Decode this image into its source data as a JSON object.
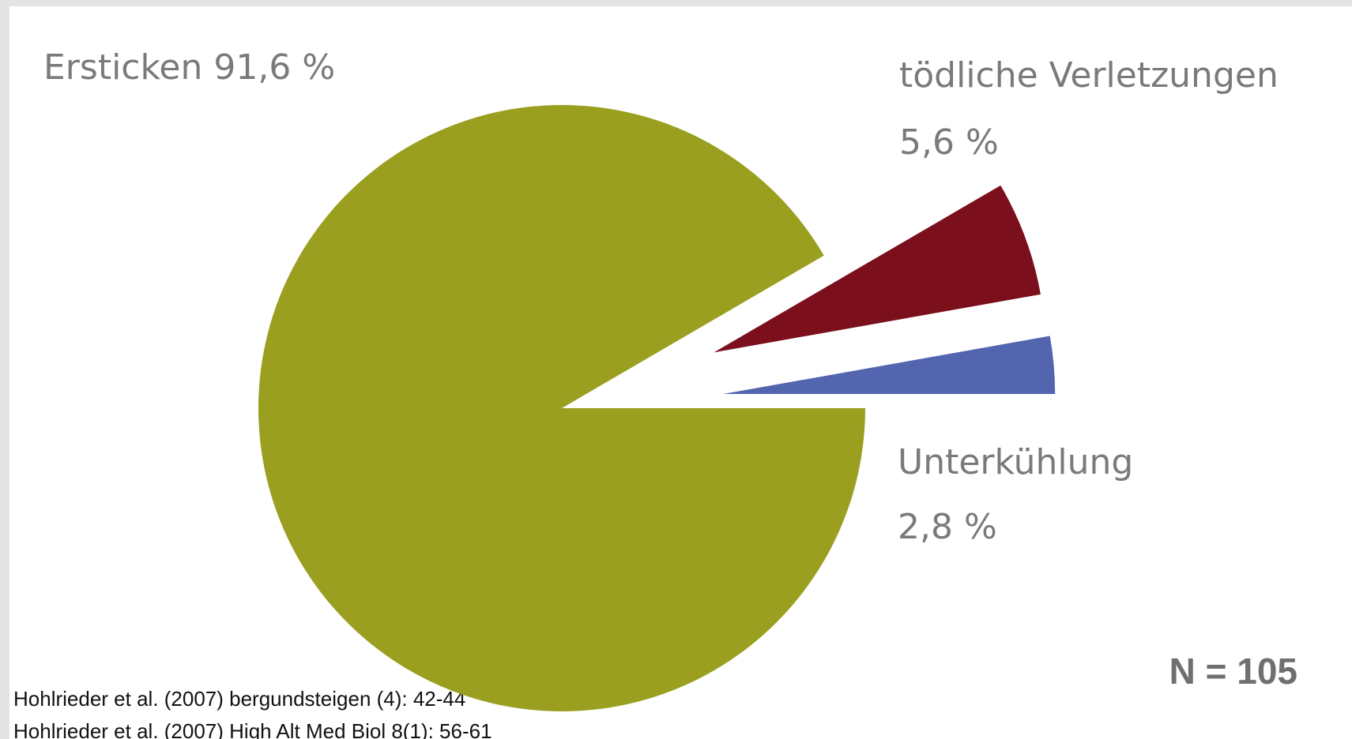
{
  "chart_data": {
    "type": "pie",
    "categories": [
      "Ersticken",
      "tödliche Verletzungen",
      "Unterkühlung"
    ],
    "values": [
      91.6,
      5.6,
      2.8
    ],
    "value_labels": [
      "91,6 %",
      "5,6 %",
      "2,8 %"
    ],
    "colors": [
      "#9a9f1f",
      "#7b0f1c",
      "#5465b0"
    ],
    "annotations": [
      "N = 105"
    ],
    "sources": [
      "Hohlrieder et al. (2007) bergundsteigen (4): 42-44",
      "Hohlrieder et al. (2007) High Alt Med Biol 8(1): 56-61"
    ]
  }
}
